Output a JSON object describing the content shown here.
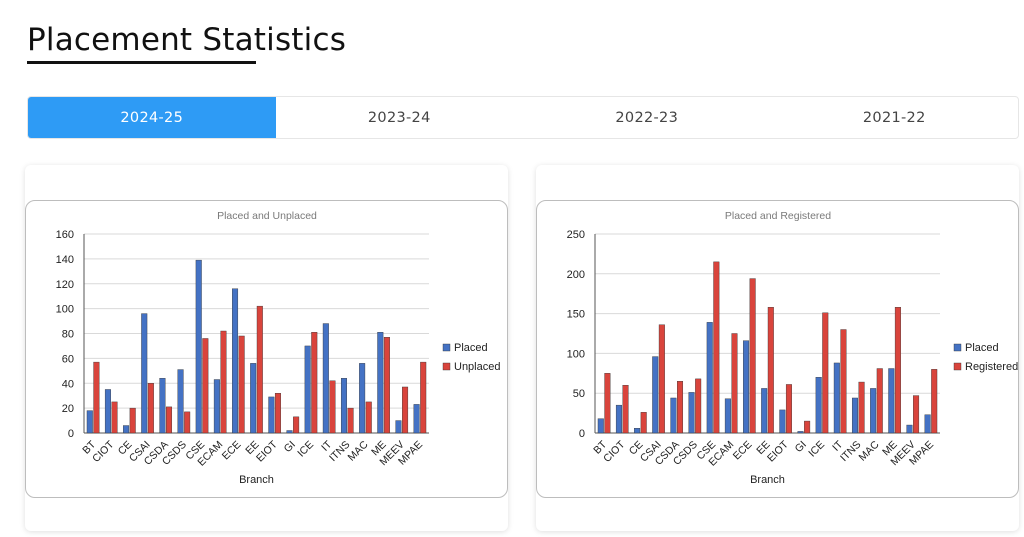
{
  "page": {
    "title": "Placement Statistics"
  },
  "tabs": [
    {
      "label": "2024-25",
      "active": true
    },
    {
      "label": "2023-24",
      "active": false
    },
    {
      "label": "2022-23",
      "active": false
    },
    {
      "label": "2021-22",
      "active": false
    }
  ],
  "colors": {
    "accent": "#2e9bf5",
    "placed": "#4472c4",
    "other": "#d9443c"
  },
  "chart_data": [
    {
      "type": "bar",
      "title": "Placed and Unplaced",
      "xlabel": "Branch",
      "ylabel": "",
      "ylim": [
        0,
        160
      ],
      "yticks": [
        0,
        20,
        40,
        60,
        80,
        100,
        120,
        140,
        160
      ],
      "legend_position": "right",
      "categories": [
        "BT",
        "CIOT",
        "CE",
        "CSAI",
        "CSDA",
        "CSDS",
        "CSE",
        "ECAM",
        "ECE",
        "EE",
        "EIOT",
        "GI",
        "ICE",
        "IT",
        "ITNS",
        "MAC",
        "ME",
        "MEEV",
        "MPAE"
      ],
      "series": [
        {
          "name": "Placed",
          "values": [
            18,
            35,
            6,
            96,
            44,
            51,
            139,
            43,
            116,
            56,
            29,
            2,
            70,
            88,
            44,
            56,
            81,
            10,
            23
          ]
        },
        {
          "name": "Unplaced",
          "values": [
            57,
            25,
            20,
            40,
            21,
            17,
            76,
            82,
            78,
            102,
            32,
            13,
            81,
            42,
            20,
            25,
            77,
            37,
            57
          ]
        }
      ]
    },
    {
      "type": "bar",
      "title": "Placed and Registered",
      "xlabel": "Branch",
      "ylabel": "",
      "ylim": [
        0,
        250
      ],
      "yticks": [
        0,
        50,
        100,
        150,
        200,
        250
      ],
      "legend_position": "right",
      "categories": [
        "BT",
        "CIOT",
        "CE",
        "CSAI",
        "CSDA",
        "CSDS",
        "CSE",
        "ECAM",
        "ECE",
        "EE",
        "EIOT",
        "GI",
        "ICE",
        "IT",
        "ITNS",
        "MAC",
        "ME",
        "MEEV",
        "MPAE"
      ],
      "series": [
        {
          "name": "Placed",
          "values": [
            18,
            35,
            6,
            96,
            44,
            51,
            139,
            43,
            116,
            56,
            29,
            2,
            70,
            88,
            44,
            56,
            81,
            10,
            23
          ]
        },
        {
          "name": "Registered",
          "values": [
            75,
            60,
            26,
            136,
            65,
            68,
            215,
            125,
            194,
            158,
            61,
            15,
            151,
            130,
            64,
            81,
            158,
            47,
            80
          ]
        }
      ]
    }
  ]
}
